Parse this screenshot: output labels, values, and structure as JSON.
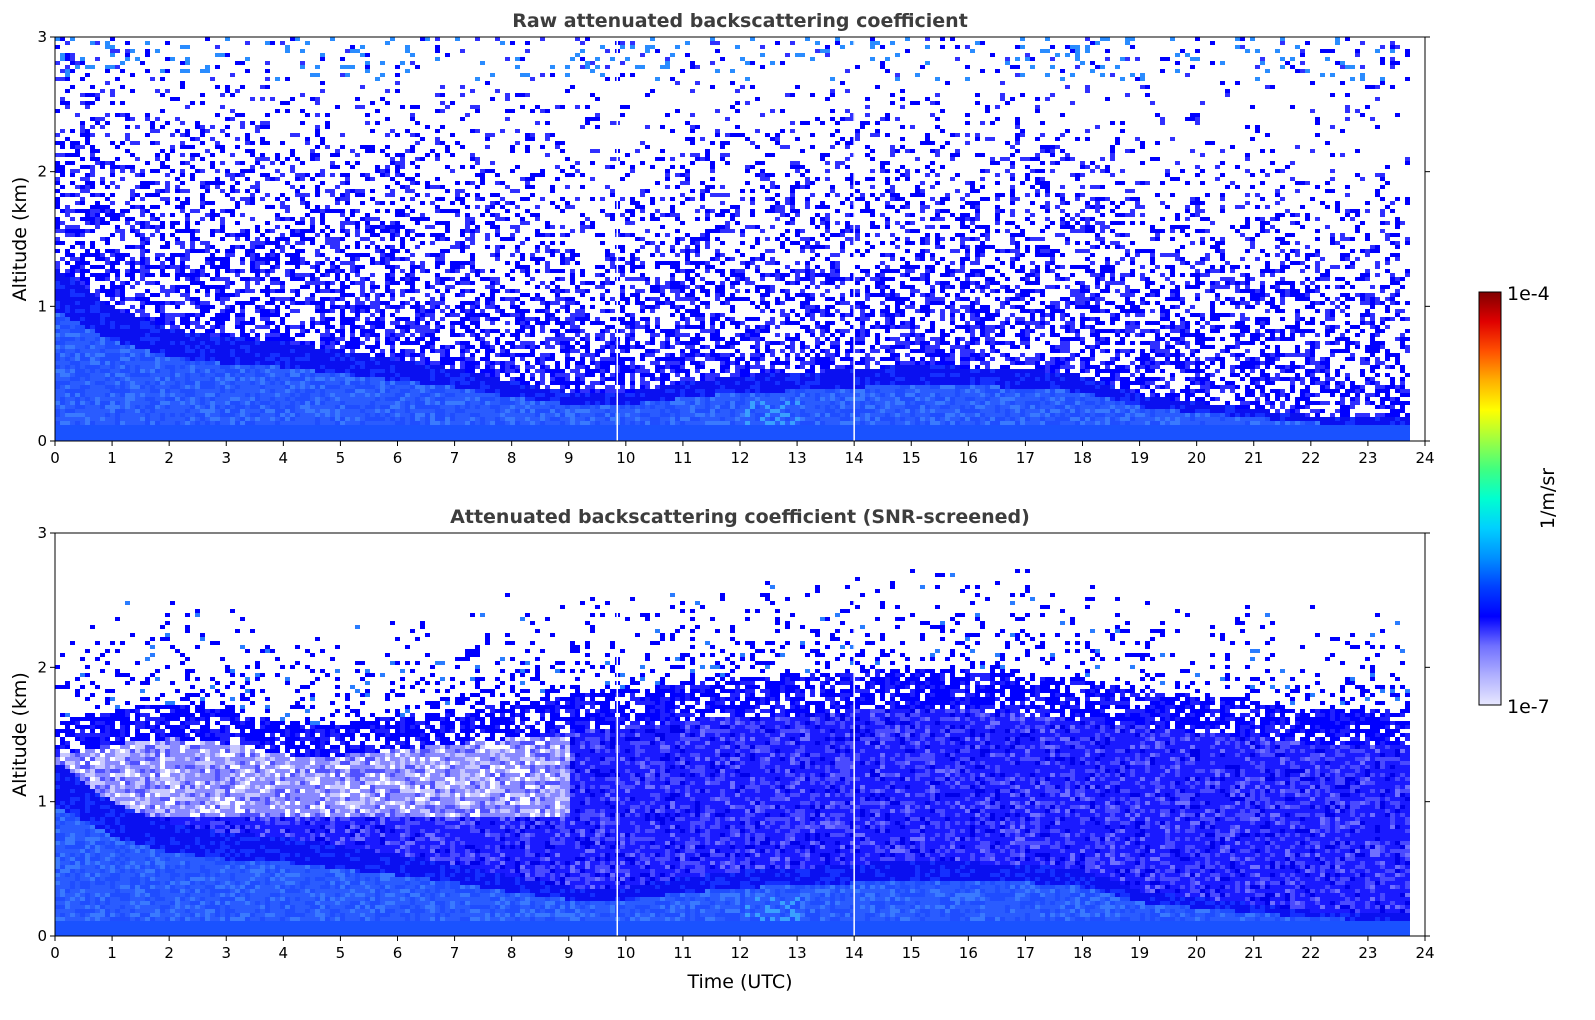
{
  "chart_data": [
    {
      "type": "heatmap",
      "title": "Raw attenuated backscattering coefficient",
      "xlabel": "",
      "ylabel": "Altitude (km)",
      "xlim": [
        0,
        24
      ],
      "ylim": [
        0,
        3
      ],
      "xticks": [
        "0",
        "1",
        "2",
        "3",
        "4",
        "5",
        "6",
        "7",
        "8",
        "9",
        "10",
        "11",
        "12",
        "13",
        "14",
        "15",
        "16",
        "17",
        "18",
        "19",
        "20",
        "21",
        "22",
        "23",
        "24"
      ],
      "yticks": [
        "0",
        "1",
        "2",
        "3"
      ],
      "data_extent_hours": [
        0,
        23.7
      ],
      "data_gaps_utc": [
        9.85,
        14.0
      ],
      "boundary_layer_top_km": {
        "time": [
          0,
          1,
          2,
          3,
          4,
          5,
          6,
          7,
          8,
          9,
          9.5,
          10,
          11,
          12,
          13,
          14,
          15,
          16,
          17,
          18,
          19,
          20,
          21,
          22,
          23,
          23.7
        ],
        "altitude": [
          1.3,
          1.0,
          0.85,
          0.78,
          0.75,
          0.68,
          0.62,
          0.55,
          0.45,
          0.38,
          0.36,
          0.38,
          0.45,
          0.5,
          0.52,
          0.55,
          0.58,
          0.56,
          0.55,
          0.5,
          0.35,
          0.3,
          0.25,
          0.2,
          0.18,
          0.18
        ]
      },
      "screened": false
    },
    {
      "type": "heatmap",
      "title": "Attenuated backscattering coefficient (SNR-screened)",
      "xlabel": "Time (UTC)",
      "ylabel": "Altitude (km)",
      "xlim": [
        0,
        24
      ],
      "ylim": [
        0,
        3
      ],
      "xticks": [
        "0",
        "1",
        "2",
        "3",
        "4",
        "5",
        "6",
        "7",
        "8",
        "9",
        "10",
        "11",
        "12",
        "13",
        "14",
        "15",
        "16",
        "17",
        "18",
        "19",
        "20",
        "21",
        "22",
        "23",
        "24"
      ],
      "yticks": [
        "0",
        "1",
        "2",
        "3"
      ],
      "data_extent_hours": [
        0,
        23.7
      ],
      "data_gaps_utc": [
        9.85,
        14.0
      ],
      "boundary_layer_top_km": {
        "time": [
          0,
          1,
          2,
          3,
          4,
          5,
          6,
          7,
          8,
          9,
          9.5,
          10,
          11,
          12,
          13,
          14,
          15,
          16,
          17,
          18,
          19,
          20,
          21,
          22,
          23,
          23.7
        ],
        "altitude": [
          1.3,
          1.0,
          0.85,
          0.78,
          0.75,
          0.68,
          0.62,
          0.55,
          0.45,
          0.38,
          0.36,
          0.38,
          0.45,
          0.5,
          0.52,
          0.55,
          0.58,
          0.56,
          0.55,
          0.5,
          0.35,
          0.3,
          0.25,
          0.2,
          0.18,
          0.18
        ]
      },
      "screen_top_km": {
        "time": [
          0,
          1,
          2,
          3,
          4,
          5,
          6,
          7,
          8,
          9,
          10,
          11,
          12,
          13,
          14,
          15,
          16,
          17,
          18,
          19,
          20,
          21,
          22,
          23,
          23.7
        ],
        "altitude": [
          1.6,
          1.7,
          1.75,
          1.7,
          1.6,
          1.6,
          1.65,
          1.7,
          1.75,
          1.8,
          1.85,
          1.9,
          1.95,
          1.95,
          2.0,
          2.0,
          2.0,
          1.95,
          1.9,
          1.85,
          1.8,
          1.75,
          1.7,
          1.7,
          1.7
        ]
      },
      "screened": true
    }
  ],
  "colorbar": {
    "max_label": "1e-4",
    "min_label": "1e-7",
    "label": "1/m/sr",
    "colors": [
      "#e8e8ff",
      "#b0b0ff",
      "#7070ff",
      "#0000ff",
      "#0040ff",
      "#0090ff",
      "#00d0ff",
      "#00ffd0",
      "#40ff80",
      "#a0ff40",
      "#ffff00",
      "#ffb000",
      "#ff5000",
      "#e00000",
      "#800000"
    ],
    "scale": "log"
  }
}
